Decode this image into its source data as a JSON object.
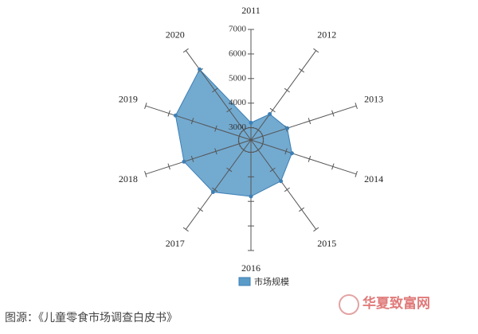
{
  "chart_data": {
    "type": "radar",
    "categories": [
      "2011",
      "2012",
      "2013",
      "2014",
      "2015",
      "2016",
      "2017",
      "2018",
      "2019",
      "2020"
    ],
    "series": [
      {
        "name": "市场规模",
        "color": "#5b9bc8",
        "values": [
          3200,
          3800,
          4050,
          4250,
          4570,
          4800,
          5120,
          5360,
          5720,
          6050
        ]
      }
    ],
    "rlim": [
      2500,
      7000
    ],
    "rticks": [
      3000,
      4000,
      5000,
      6000,
      7000
    ]
  },
  "source": "图源：《儿童零食市场调查白皮书》",
  "watermark": "华夏致富网"
}
